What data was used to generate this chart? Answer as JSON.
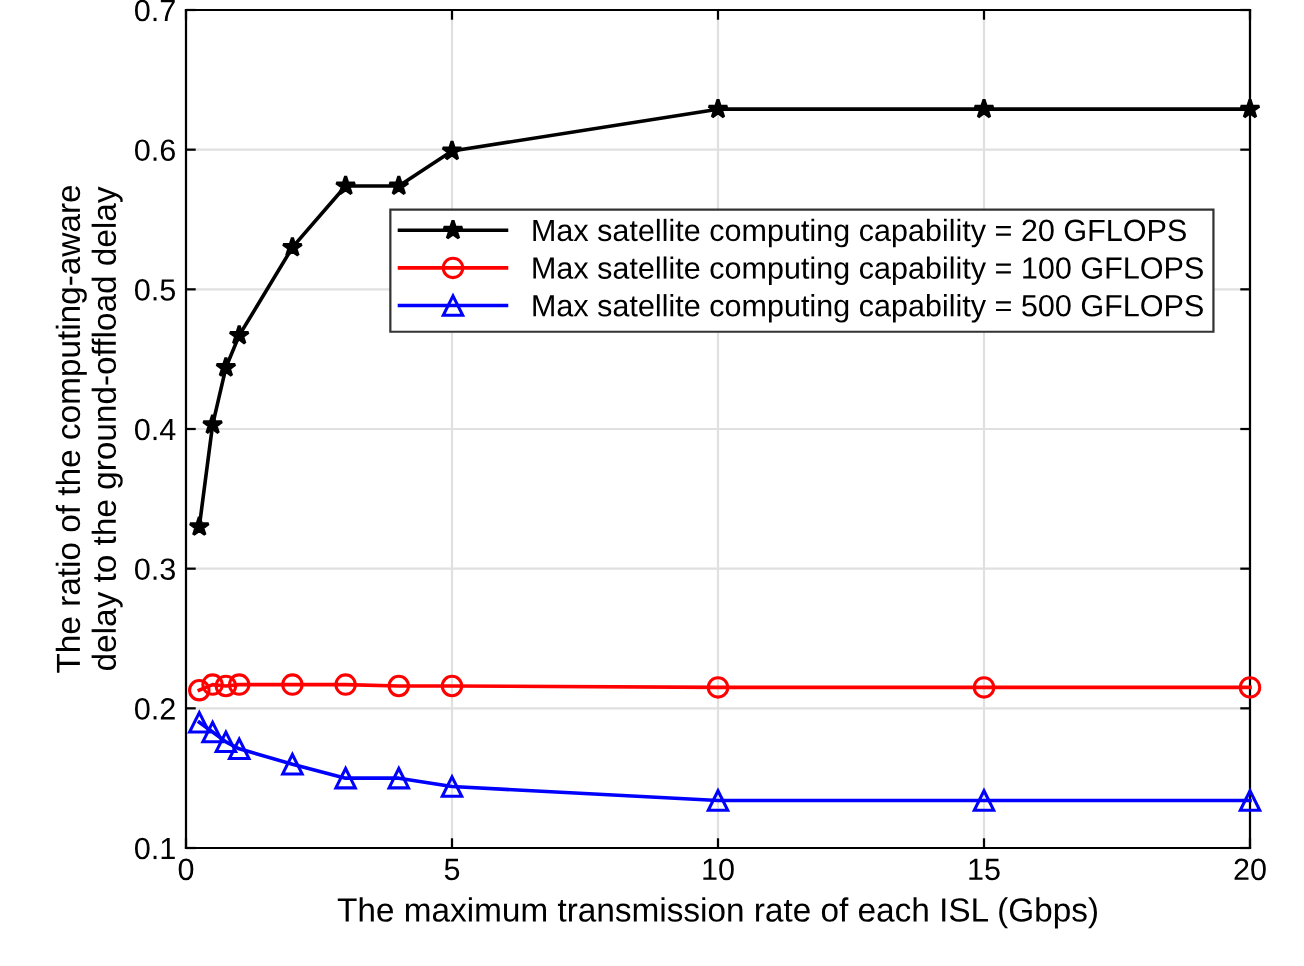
{
  "chart_data": {
    "type": "line",
    "xlabel": "The maximum transmission rate of each ISL (Gbps)",
    "ylabel": "The ratio of the computing-aware\ndelay to the ground-offload delay",
    "x": [
      0.25,
      0.5,
      0.75,
      1,
      2,
      3,
      4,
      5,
      10,
      15,
      20
    ],
    "series": [
      {
        "name": "Max satellite computing capability = 20 GFLOPS",
        "color": "#000000",
        "marker": "star",
        "values": [
          0.33,
          0.403,
          0.444,
          0.467,
          0.53,
          0.574,
          0.574,
          0.599,
          0.629,
          0.629,
          0.629
        ]
      },
      {
        "name": "Max satellite computing capability = 100 GFLOPS",
        "color": "#ff0000",
        "marker": "circle",
        "values": [
          0.213,
          0.217,
          0.216,
          0.217,
          0.217,
          0.217,
          0.216,
          0.216,
          0.215,
          0.215,
          0.215
        ]
      },
      {
        "name": "Max satellite computing capability = 500 GFLOPS",
        "color": "#0000ff",
        "marker": "triangle",
        "values": [
          0.19,
          0.183,
          0.176,
          0.171,
          0.16,
          0.15,
          0.15,
          0.144,
          0.134,
          0.134,
          0.134
        ]
      }
    ],
    "xlim": [
      0,
      20
    ],
    "xticks": [
      0,
      5,
      10,
      15,
      20
    ],
    "ylim": [
      0.1,
      0.7
    ],
    "yticks": [
      0.1,
      0.2,
      0.3,
      0.4,
      0.5,
      0.6,
      0.7
    ],
    "grid": true,
    "legend": "top right",
    "line_style": "solid"
  }
}
